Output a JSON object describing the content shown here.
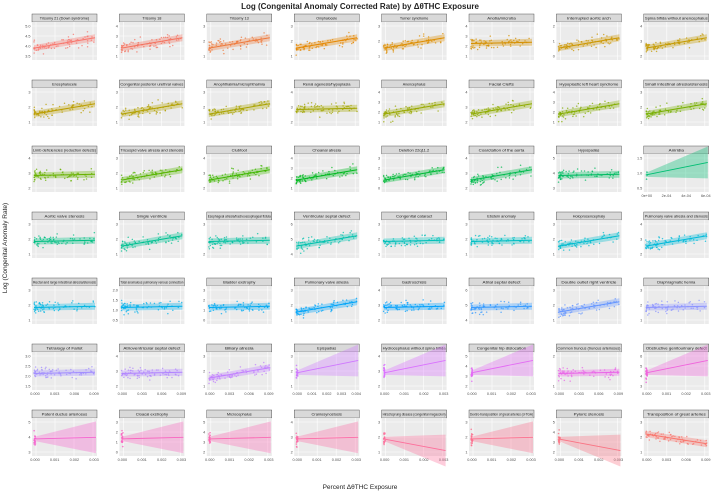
{
  "chart_data": {
    "type": "scatter",
    "title": "Log (Congenital Anomaly Corrected Rate) by ΔθTHC Exposure",
    "xlabel": "Percent ΔθTHC Exposure",
    "ylabel": "Log (Congenital Anomaly Rate)",
    "grid": true,
    "legend": "none",
    "panels": [
      {
        "label": "Trisomy 21 (Down syndrome)",
        "color": "#f8766d",
        "yticks": [
          "3.5",
          "4.0",
          "4.5",
          "5.0"
        ],
        "xticks": [],
        "trend": "up",
        "n": 70
      },
      {
        "label": "Trisomy 18",
        "color": "#f4725f",
        "yticks": [
          "1",
          "2",
          "3",
          "4"
        ],
        "xticks": [],
        "trend": "up",
        "n": 70
      },
      {
        "label": "Trisomy 13",
        "color": "#ee7a3c",
        "yticks": [
          "1",
          "2",
          "3"
        ],
        "xticks": [],
        "trend": "up",
        "n": 70
      },
      {
        "label": "Omphalocele",
        "color": "#e58700",
        "yticks": [
          "1",
          "2",
          "3"
        ],
        "xticks": [],
        "trend": "up",
        "n": 70
      },
      {
        "label": "Turner syndrome",
        "color": "#dd8d00",
        "yticks": [
          "1",
          "2",
          "3"
        ],
        "xticks": [],
        "trend": "up",
        "n": 70
      },
      {
        "label": "Anotia/microtia",
        "color": "#d59000",
        "yticks": [
          "1",
          "2",
          "3",
          "4"
        ],
        "xticks": [],
        "trend": "flat",
        "n": 70
      },
      {
        "label": "Interrupted aortic arch",
        "color": "#cc9600",
        "yticks": [
          "0",
          "1",
          "2"
        ],
        "xticks": [],
        "trend": "up",
        "n": 70
      },
      {
        "label": "Spina bifida without anencephalus",
        "color": "#c49a00",
        "yticks": [
          "2",
          "3",
          "4"
        ],
        "xticks": [],
        "trend": "up",
        "n": 70
      },
      {
        "label": "Encephalocele",
        "color": "#bb9d00",
        "yticks": [
          "1",
          "2",
          "3"
        ],
        "xticks": [],
        "trend": "up",
        "n": 70
      },
      {
        "label": "Congenital posterior urethral valves",
        "color": "#b3a000",
        "yticks": [
          "1",
          "2",
          "3"
        ],
        "xticks": [],
        "trend": "up",
        "n": 70
      },
      {
        "label": "Anophthalmia/microphthalmia",
        "color": "#aaa300",
        "yticks": [
          "1",
          "2",
          "3"
        ],
        "xticks": [],
        "trend": "up",
        "n": 70
      },
      {
        "label": "Renal agenesis/hypoplasia",
        "color": "#a3a500",
        "yticks": [
          "2",
          "3",
          "4"
        ],
        "xticks": [],
        "trend": "flat",
        "n": 70
      },
      {
        "label": "Anencephalus",
        "color": "#99a800",
        "yticks": [
          "1",
          "2",
          "3",
          "4"
        ],
        "xticks": [],
        "trend": "up",
        "n": 70
      },
      {
        "label": "Facial Clefts",
        "color": "#8fab00",
        "yticks": [
          "2",
          "3",
          "4"
        ],
        "xticks": [],
        "trend": "up",
        "n": 70
      },
      {
        "label": "Hypoplastic left heart syndrome",
        "color": "#84ad00",
        "yticks": [
          "1",
          "2",
          "3",
          "4"
        ],
        "xticks": [],
        "trend": "up",
        "n": 70
      },
      {
        "label": "Small intestinal atresia/stenosis",
        "color": "#77af00",
        "yticks": [
          "1",
          "2",
          "3"
        ],
        "xticks": [],
        "trend": "up",
        "n": 70
      },
      {
        "label": "Limb deficiencies (reduction defects)",
        "color": "#68b200",
        "yticks": [
          "2",
          "3",
          "4"
        ],
        "xticks": [],
        "trend": "flat",
        "n": 70
      },
      {
        "label": "Tricuspid valve atresia and stenosis",
        "color": "#57b400",
        "yticks": [
          "1",
          "2",
          "3"
        ],
        "xticks": [],
        "trend": "up",
        "n": 70
      },
      {
        "label": "Clubfoot",
        "color": "#3fb600",
        "yticks": [
          "2",
          "3",
          "4"
        ],
        "xticks": [],
        "trend": "up",
        "n": 70
      },
      {
        "label": "Choanal atresia",
        "color": "#00b81f",
        "yticks": [
          "1",
          "2",
          "3",
          "4"
        ],
        "xticks": [],
        "trend": "up",
        "n": 70
      },
      {
        "label": "Deletion 22q11.2",
        "color": "#00ba38",
        "yticks": [
          "0",
          "1",
          "2",
          "3"
        ],
        "xticks": [],
        "trend": "up",
        "n": 70
      },
      {
        "label": "Coarctation of the aorta",
        "color": "#00bb4e",
        "yticks": [
          "2",
          "3",
          "4"
        ],
        "xticks": [],
        "trend": "up",
        "n": 70
      },
      {
        "label": "Hypospadias",
        "color": "#00bc62",
        "yticks": [
          "3",
          "4",
          "5"
        ],
        "xticks": [],
        "trend": "flat",
        "n": 70
      },
      {
        "label": "Aniridia",
        "color": "#00be73",
        "yticks": [
          "0.5",
          "1.0",
          "1.5"
        ],
        "xticks": [
          "0e+00",
          "2e-04",
          "4e-04",
          "6e-04"
        ],
        "trend": "up",
        "n": 3,
        "cone": true
      },
      {
        "label": "Aortic valve stenosis",
        "color": "#00bf83",
        "yticks": [
          "1",
          "2",
          "3"
        ],
        "xticks": [],
        "trend": "flat",
        "n": 70
      },
      {
        "label": "Single ventricle",
        "color": "#00c092",
        "yticks": [
          "1",
          "2",
          "3"
        ],
        "xticks": [],
        "trend": "up",
        "n": 70
      },
      {
        "label": "Esophageal atresia/tracheoesophageal fistula",
        "color": "#00c1a0",
        "yticks": [
          "2",
          "3"
        ],
        "xticks": [],
        "trend": "flat",
        "n": 70
      },
      {
        "label": "Ventricular septal defect",
        "color": "#00c1ad",
        "yticks": [
          "4",
          "5",
          "6"
        ],
        "xticks": [],
        "trend": "up",
        "n": 70
      },
      {
        "label": "Congenital cataract",
        "color": "#00c0b9",
        "yticks": [
          "1",
          "2",
          "3"
        ],
        "xticks": [],
        "trend": "flat",
        "n": 70
      },
      {
        "label": "Ebstein anomaly",
        "color": "#00bfc4",
        "yticks": [
          "1",
          "2",
          "3"
        ],
        "xticks": [],
        "trend": "flat",
        "n": 70
      },
      {
        "label": "Holoprosencephaly",
        "color": "#00bccf",
        "yticks": [
          "1",
          "2",
          "3"
        ],
        "xticks": [],
        "trend": "up",
        "n": 70
      },
      {
        "label": "Pulmonary valve atresia and stenosis",
        "color": "#00b9d9",
        "yticks": [
          "2",
          "3",
          "4"
        ],
        "xticks": [],
        "trend": "up",
        "n": 70
      },
      {
        "label": "Rectal and large intestinal atresia/stenosis",
        "color": "#00b5e2",
        "yticks": [
          "1",
          "2",
          "3"
        ],
        "xticks": [],
        "trend": "flat",
        "n": 70
      },
      {
        "label": "Total anomalous pulmonary venous connection",
        "color": "#00b0eb",
        "yticks": [
          "0.5",
          "1.0",
          "1.5",
          "2.0"
        ],
        "xticks": [],
        "trend": "flat",
        "n": 70
      },
      {
        "label": "Bladder exstrophy",
        "color": "#00aaf2",
        "yticks": [
          "0",
          "1",
          "2",
          "3"
        ],
        "xticks": [],
        "trend": "flat",
        "n": 70
      },
      {
        "label": "Pulmonary valve atresia",
        "color": "#00a4f8",
        "yticks": [
          "1",
          "2",
          "3"
        ],
        "xticks": [],
        "trend": "up",
        "n": 70
      },
      {
        "label": "Gastroschisis",
        "color": "#00a0fc",
        "yticks": [
          "2",
          "3",
          "4"
        ],
        "xticks": [],
        "trend": "flat",
        "n": 70
      },
      {
        "label": "Atrial septal defect",
        "color": "#359aff",
        "yticks": [
          "4",
          "5",
          "6"
        ],
        "xticks": [],
        "trend": "flat",
        "n": 70
      },
      {
        "label": "Double outlet right ventricle",
        "color": "#6495ff",
        "yticks": [
          "1",
          "2",
          "3"
        ],
        "xticks": [],
        "trend": "up",
        "n": 70
      },
      {
        "label": "Diaphragmatic hernia",
        "color": "#8b93ff",
        "yticks": [
          "1",
          "2",
          "3"
        ],
        "xticks": [],
        "trend": "flat",
        "n": 70
      },
      {
        "label": "Tetralogy of Fallot",
        "color": "#a28eff",
        "yticks": [
          "1.5",
          "2.0",
          "2.5",
          "3.0"
        ],
        "xticks": [
          "0.000",
          "0.003",
          "0.006",
          "0.009"
        ],
        "trend": "flat",
        "n": 70
      },
      {
        "label": "Atrioventricular septal defect",
        "color": "#b185ff",
        "yticks": [
          "2",
          "3",
          "4"
        ],
        "xticks": [
          "0.000",
          "0.003",
          "0.006",
          "0.009"
        ],
        "trend": "flat",
        "n": 70
      },
      {
        "label": "Biliary atresia",
        "color": "#c17fff",
        "yticks": [
          "1",
          "2",
          "3"
        ],
        "xticks": [
          "0.000",
          "0.003",
          "0.006",
          "0.009"
        ],
        "trend": "up",
        "n": 70
      },
      {
        "label": "Epispadias",
        "color": "#cf78ff",
        "yticks": [
          "1",
          "2",
          "3"
        ],
        "xticks": [
          "0.000",
          "0.001",
          "0.002",
          "0.003",
          "0.004"
        ],
        "trend": "up",
        "n": 20,
        "cone": true
      },
      {
        "label": "Hydrocephalus without spina bifida",
        "color": "#da71ff",
        "yticks": [
          "2",
          "3",
          "4"
        ],
        "xticks": [
          "0.000",
          "0.001",
          "0.002",
          "0.003"
        ],
        "trend": "up",
        "n": 20,
        "cone": true
      },
      {
        "label": "Congenital hip dislocation",
        "color": "#e36bf4",
        "yticks": [
          "2",
          "3",
          "4",
          "5"
        ],
        "xticks": [
          "0.000",
          "0.001",
          "0.002",
          "0.003"
        ],
        "trend": "up",
        "n": 20,
        "cone": true
      },
      {
        "label": "Common truncus (truncus arteriosus)",
        "color": "#ea65e8",
        "yticks": [
          "1",
          "2"
        ],
        "xticks": [
          "0.000",
          "0.003",
          "0.006",
          "0.009"
        ],
        "trend": "flat",
        "n": 70
      },
      {
        "label": "Obstructive genitourinary defect",
        "color": "#f063dc",
        "yticks": [
          "3",
          "4",
          "5",
          "6"
        ],
        "xticks": [
          "0.000",
          "0.001",
          "0.002",
          "0.003"
        ],
        "trend": "up",
        "n": 20,
        "cone": true
      },
      {
        "label": "Patent ductus arteriosus",
        "color": "#f564cf",
        "yticks": [
          "3",
          "4",
          "5"
        ],
        "xticks": [
          "0.000",
          "0.001",
          "0.002",
          "0.003"
        ],
        "trend": "flat",
        "n": 20,
        "cone": true
      },
      {
        "label": "Cloacal exstrophy",
        "color": "#f966c1",
        "yticks": [
          "0",
          "1",
          "2",
          "3"
        ],
        "xticks": [
          "0.000",
          "0.001",
          "0.002",
          "0.003"
        ],
        "trend": "flat",
        "n": 20,
        "cone": true
      },
      {
        "label": "Microcephalus",
        "color": "#fb69b4",
        "yticks": [
          "2",
          "3",
          "4",
          "5"
        ],
        "xticks": [
          "0.000",
          "0.001",
          "0.002",
          "0.003"
        ],
        "trend": "flat",
        "n": 20,
        "cone": true
      },
      {
        "label": "Craniosynostosis",
        "color": "#fd6ca7",
        "yticks": [
          "2",
          "3",
          "4"
        ],
        "xticks": [
          "0.000",
          "0.001",
          "0.002",
          "0.003"
        ],
        "trend": "flat",
        "n": 20,
        "cone": true
      },
      {
        "label": "Hirschsprung disease (congenital megacolon)",
        "color": "#fd6f9b",
        "yticks": [
          "1",
          "2",
          "3"
        ],
        "xticks": [
          "0.000",
          "0.001",
          "0.002",
          "0.003"
        ],
        "trend": "down",
        "n": 20,
        "cone": true
      },
      {
        "label": "Dextro-transposition of great arteries (d-TGA)",
        "color": "#fc718f",
        "yticks": [
          "1",
          "2",
          "3"
        ],
        "xticks": [
          "0.000",
          "0.001",
          "0.002",
          "0.003"
        ],
        "trend": "flat",
        "n": 20,
        "cone": true
      },
      {
        "label": "Pyloric stenosis",
        "color": "#fa7383",
        "yticks": [
          "2",
          "3",
          "4",
          "5"
        ],
        "xticks": [
          "0.000",
          "0.001",
          "0.002",
          "0.003"
        ],
        "trend": "down",
        "n": 20,
        "cone": true
      },
      {
        "label": "Transposition of great arteries",
        "color": "#f8766d",
        "yticks": [
          "1",
          "2",
          "3"
        ],
        "xticks": [
          "0.000",
          "0.003",
          "0.006",
          "0.009"
        ],
        "trend": "down",
        "n": 70
      }
    ]
  }
}
